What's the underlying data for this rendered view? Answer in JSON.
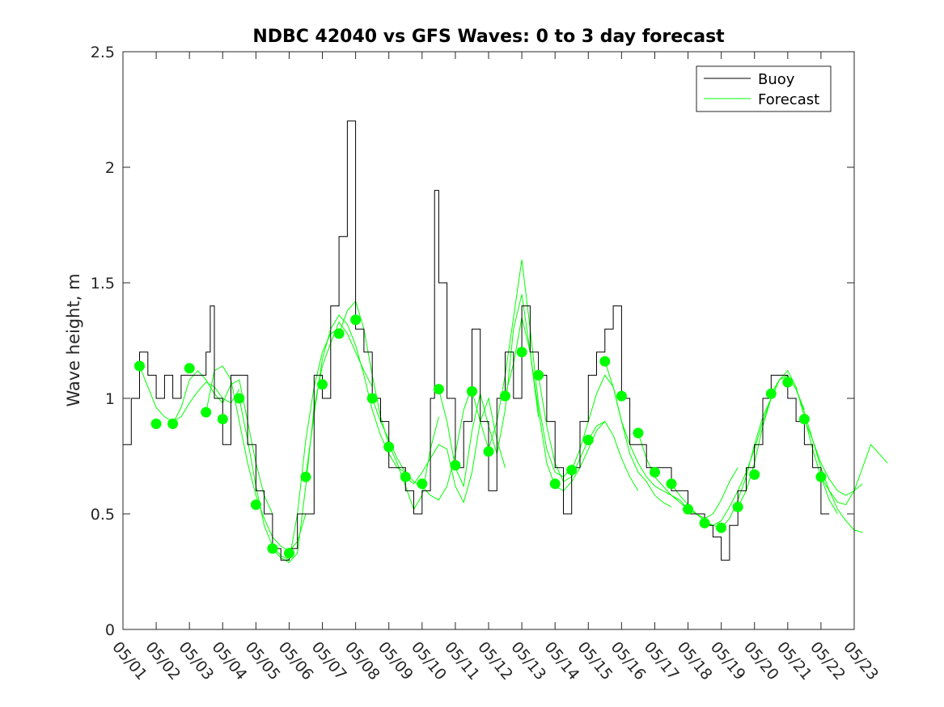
{
  "chart_data": {
    "type": "line",
    "title": "NDBC 42040 vs GFS Waves: 0 to 3 day forecast",
    "xlabel": "",
    "ylabel": "Wave height, m",
    "xlim": [
      "05/01",
      "05/23"
    ],
    "ylim": [
      0,
      2.5
    ],
    "grid": false,
    "legend_position": "top-right",
    "x_ticks": [
      "05/01",
      "05/02",
      "05/03",
      "05/04",
      "05/05",
      "05/06",
      "05/07",
      "05/08",
      "05/09",
      "05/10",
      "05/11",
      "05/12",
      "05/13",
      "05/14",
      "05/15",
      "05/16",
      "05/17",
      "05/18",
      "05/19",
      "05/20",
      "05/21",
      "05/22",
      "05/23"
    ],
    "y_ticks": [
      "0",
      "0.5",
      "1",
      "1.5",
      "2",
      "2.5"
    ],
    "y_tick_values": [
      0,
      0.5,
      1,
      1.5,
      2,
      2.5
    ],
    "legend": [
      {
        "label": "Buoy",
        "color": "#000000"
      },
      {
        "label": "Forecast",
        "color": "#00ff00"
      }
    ],
    "buoy": {
      "name": "Buoy",
      "color": "#000000",
      "points": [
        [
          "05/01 00:00",
          0.8
        ],
        [
          "05/01 06:00",
          1.0
        ],
        [
          "05/01 12:00",
          1.2
        ],
        [
          "05/01 18:00",
          1.1
        ],
        [
          "05/02 00:00",
          1.0
        ],
        [
          "05/02 06:00",
          1.1
        ],
        [
          "05/02 12:00",
          1.0
        ],
        [
          "05/02 18:00",
          1.1
        ],
        [
          "05/03 00:00",
          1.1
        ],
        [
          "05/03 06:00",
          1.1
        ],
        [
          "05/03 12:00",
          1.2
        ],
        [
          "05/03 15:00",
          1.4
        ],
        [
          "05/03 18:00",
          1.0
        ],
        [
          "05/04 00:00",
          0.8
        ],
        [
          "05/04 06:00",
          1.1
        ],
        [
          "05/04 12:00",
          1.1
        ],
        [
          "05/04 18:00",
          0.8
        ],
        [
          "05/05 00:00",
          0.6
        ],
        [
          "05/05 06:00",
          0.5
        ],
        [
          "05/05 12:00",
          0.35
        ],
        [
          "05/05 18:00",
          0.3
        ],
        [
          "05/06 00:00",
          0.35
        ],
        [
          "05/06 06:00",
          0.5
        ],
        [
          "05/06 12:00",
          0.5
        ],
        [
          "05/06 18:00",
          1.1
        ],
        [
          "05/07 00:00",
          1.0
        ],
        [
          "05/07 06:00",
          1.4
        ],
        [
          "05/07 12:00",
          1.7
        ],
        [
          "05/07 18:00",
          2.2
        ],
        [
          "05/08 00:00",
          1.3
        ],
        [
          "05/08 06:00",
          1.2
        ],
        [
          "05/08 12:00",
          1.0
        ],
        [
          "05/08 18:00",
          0.9
        ],
        [
          "05/09 00:00",
          0.7
        ],
        [
          "05/09 06:00",
          0.7
        ],
        [
          "05/09 12:00",
          0.6
        ],
        [
          "05/09 18:00",
          0.5
        ],
        [
          "05/10 00:00",
          0.6
        ],
        [
          "05/10 06:00",
          1.0
        ],
        [
          "05/10 09:00",
          1.9
        ],
        [
          "05/10 12:00",
          1.5
        ],
        [
          "05/10 18:00",
          1.0
        ],
        [
          "05/11 00:00",
          0.7
        ],
        [
          "05/11 06:00",
          0.9
        ],
        [
          "05/11 12:00",
          1.3
        ],
        [
          "05/11 18:00",
          0.9
        ],
        [
          "05/12 00:00",
          0.6
        ],
        [
          "05/12 06:00",
          1.0
        ],
        [
          "05/12 12:00",
          1.2
        ],
        [
          "05/12 18:00",
          1.0
        ],
        [
          "05/13 00:00",
          1.4
        ],
        [
          "05/13 06:00",
          1.2
        ],
        [
          "05/13 12:00",
          1.1
        ],
        [
          "05/13 18:00",
          0.9
        ],
        [
          "05/14 00:00",
          0.7
        ],
        [
          "05/14 06:00",
          0.5
        ],
        [
          "05/14 12:00",
          0.7
        ],
        [
          "05/14 18:00",
          0.9
        ],
        [
          "05/15 00:00",
          1.1
        ],
        [
          "05/15 06:00",
          1.2
        ],
        [
          "05/15 12:00",
          1.3
        ],
        [
          "05/15 18:00",
          1.4
        ],
        [
          "05/16 00:00",
          1.0
        ],
        [
          "05/16 06:00",
          0.8
        ],
        [
          "05/16 12:00",
          0.8
        ],
        [
          "05/16 18:00",
          0.7
        ],
        [
          "05/17 00:00",
          0.7
        ],
        [
          "05/17 06:00",
          0.7
        ],
        [
          "05/17 12:00",
          0.6
        ],
        [
          "05/17 18:00",
          0.6
        ],
        [
          "05/18 00:00",
          0.5
        ],
        [
          "05/18 06:00",
          0.5
        ],
        [
          "05/18 12:00",
          0.45
        ],
        [
          "05/18 18:00",
          0.4
        ],
        [
          "05/19 00:00",
          0.3
        ],
        [
          "05/19 06:00",
          0.45
        ],
        [
          "05/19 12:00",
          0.6
        ],
        [
          "05/19 18:00",
          0.7
        ],
        [
          "05/20 00:00",
          0.8
        ],
        [
          "05/20 06:00",
          1.0
        ],
        [
          "05/20 12:00",
          1.1
        ],
        [
          "05/20 18:00",
          1.1
        ],
        [
          "05/21 00:00",
          1.0
        ],
        [
          "05/21 06:00",
          0.9
        ],
        [
          "05/21 12:00",
          0.8
        ],
        [
          "05/21 18:00",
          0.7
        ],
        [
          "05/22 00:00",
          0.5
        ],
        [
          "05/22 06:00",
          0.5
        ]
      ]
    },
    "forecast": {
      "name": "Forecast",
      "color": "#00ff00",
      "marker_points": [
        [
          "05/01 12:00",
          1.14
        ],
        [
          "05/02 00:00",
          0.89
        ],
        [
          "05/02 12:00",
          0.89
        ],
        [
          "05/03 00:00",
          1.13
        ],
        [
          "05/03 12:00",
          0.94
        ],
        [
          "05/04 00:00",
          0.91
        ],
        [
          "05/04 12:00",
          1.0
        ],
        [
          "05/05 00:00",
          0.54
        ],
        [
          "05/05 12:00",
          0.35
        ],
        [
          "05/06 00:00",
          0.33
        ],
        [
          "05/06 12:00",
          0.66
        ],
        [
          "05/07 00:00",
          1.06
        ],
        [
          "05/07 12:00",
          1.28
        ],
        [
          "05/08 00:00",
          1.34
        ],
        [
          "05/08 12:00",
          1.0
        ],
        [
          "05/09 00:00",
          0.79
        ],
        [
          "05/09 12:00",
          0.66
        ],
        [
          "05/10 00:00",
          0.63
        ],
        [
          "05/10 12:00",
          1.04
        ],
        [
          "05/11 00:00",
          0.71
        ],
        [
          "05/11 12:00",
          1.03
        ],
        [
          "05/12 00:00",
          0.77
        ],
        [
          "05/12 12:00",
          1.01
        ],
        [
          "05/13 00:00",
          1.2
        ],
        [
          "05/13 12:00",
          1.1
        ],
        [
          "05/14 00:00",
          0.63
        ],
        [
          "05/14 12:00",
          0.69
        ],
        [
          "05/15 00:00",
          0.82
        ],
        [
          "05/15 12:00",
          1.16
        ],
        [
          "05/16 00:00",
          1.01
        ],
        [
          "05/16 12:00",
          0.85
        ],
        [
          "05/17 00:00",
          0.68
        ],
        [
          "05/17 12:00",
          0.63
        ],
        [
          "05/18 00:00",
          0.52
        ],
        [
          "05/18 12:00",
          0.46
        ],
        [
          "05/19 00:00",
          0.44
        ],
        [
          "05/19 12:00",
          0.53
        ],
        [
          "05/20 00:00",
          0.67
        ],
        [
          "05/20 12:00",
          1.02
        ],
        [
          "05/21 00:00",
          1.07
        ],
        [
          "05/21 12:00",
          0.91
        ],
        [
          "05/22 00:00",
          0.66
        ]
      ],
      "runs": [
        {
          "start": "05/01 12:00",
          "values": [
            1.14,
            1.05,
            0.96,
            0.92,
            0.9,
            0.92,
            0.98,
            1.03,
            1.07,
            1.05,
            1.0,
            0.98,
            1.04
          ]
        },
        {
          "start": "05/02 12:00",
          "values": [
            0.89,
            0.96,
            1.08,
            1.12,
            1.08,
            1.02,
            0.98,
            1.06,
            1.08,
            0.9,
            0.72,
            0.58,
            0.5
          ]
        },
        {
          "start": "05/03 12:00",
          "values": [
            0.94,
            1.12,
            1.14,
            1.08,
            0.9,
            0.72,
            0.58,
            0.48,
            0.4,
            0.36,
            0.34,
            0.38,
            0.5
          ]
        },
        {
          "start": "05/04 12:00",
          "values": [
            1.0,
            0.82,
            0.62,
            0.45,
            0.36,
            0.32,
            0.3,
            0.5,
            0.82,
            1.05,
            1.2,
            1.28,
            1.3
          ]
        },
        {
          "start": "05/05 12:00",
          "values": [
            0.35,
            0.31,
            0.29,
            0.33,
            0.62,
            0.96,
            1.14,
            1.24,
            1.33,
            1.28,
            1.2,
            1.12,
            1.05
          ]
        },
        {
          "start": "05/06 12:00",
          "values": [
            0.66,
            0.93,
            1.17,
            1.3,
            1.36,
            1.32,
            1.23,
            1.1,
            0.95,
            0.84,
            0.76,
            0.7,
            0.68
          ]
        },
        {
          "start": "05/07 12:00",
          "values": [
            1.28,
            1.38,
            1.42,
            1.3,
            1.1,
            0.92,
            0.8,
            0.72,
            0.62,
            0.52,
            0.58,
            0.78,
            0.92
          ]
        },
        {
          "start": "05/08 12:00",
          "values": [
            1.0,
            0.9,
            0.82,
            0.74,
            0.68,
            0.64,
            0.62,
            0.58,
            0.56,
            0.62,
            0.76,
            0.95,
            1.05
          ]
        },
        {
          "start": "05/09 12:00",
          "values": [
            0.66,
            0.63,
            0.68,
            0.74,
            0.8,
            0.78,
            0.62,
            0.55,
            0.68,
            0.9,
            1.0,
            0.82,
            0.7
          ]
        },
        {
          "start": "05/10 12:00",
          "values": [
            1.04,
            0.9,
            0.7,
            0.62,
            0.86,
            1.02,
            0.88,
            0.76,
            0.95,
            1.3,
            1.45,
            1.2,
            0.92
          ]
        },
        {
          "start": "05/11 12:00",
          "values": [
            1.03,
            0.9,
            0.78,
            0.9,
            1.1,
            1.35,
            1.6,
            1.3,
            0.98,
            0.78,
            0.68,
            0.66,
            0.7
          ]
        },
        {
          "start": "05/12 12:00",
          "values": [
            1.01,
            1.15,
            1.35,
            1.2,
            0.95,
            0.72,
            0.62,
            0.6,
            0.64,
            0.7,
            0.78,
            0.86,
            0.9
          ]
        },
        {
          "start": "05/13 12:00",
          "values": [
            1.1,
            0.88,
            0.72,
            0.64,
            0.66,
            0.74,
            0.82,
            0.88,
            0.9,
            0.84,
            0.74,
            0.66,
            0.6
          ]
        },
        {
          "start": "05/14 12:00",
          "values": [
            0.69,
            0.78,
            0.9,
            1.02,
            1.1,
            1.05,
            0.9,
            0.76,
            0.68,
            0.64,
            0.58,
            0.55,
            0.53
          ]
        },
        {
          "start": "05/15 12:00",
          "values": [
            1.16,
            1.05,
            0.9,
            0.8,
            0.72,
            0.66,
            0.62,
            0.6,
            0.58,
            0.56,
            0.52,
            0.5,
            0.48
          ]
        },
        {
          "start": "05/16 12:00",
          "values": [
            0.85,
            0.74,
            0.66,
            0.62,
            0.58,
            0.55,
            0.52,
            0.5,
            0.48,
            0.5,
            0.56,
            0.64,
            0.7
          ]
        },
        {
          "start": "05/17 12:00",
          "values": [
            0.63,
            0.58,
            0.54,
            0.5,
            0.47,
            0.45,
            0.44,
            0.48,
            0.56,
            0.66,
            0.8,
            0.92,
            1.0
          ]
        },
        {
          "start": "05/18 12:00",
          "values": [
            0.46,
            0.45,
            0.47,
            0.53,
            0.6,
            0.68,
            0.78,
            0.9,
            1.0,
            1.08,
            1.1,
            1.04,
            0.95
          ]
        },
        {
          "start": "05/19 12:00",
          "values": [
            0.53,
            0.6,
            0.72,
            0.88,
            1.0,
            1.08,
            1.12,
            1.05,
            0.92,
            0.78,
            0.66,
            0.56,
            0.5
          ]
        },
        {
          "start": "05/20 12:00",
          "values": [
            1.02,
            1.08,
            1.1,
            1.04,
            0.94,
            0.82,
            0.7,
            0.6,
            0.52,
            0.47,
            0.43,
            0.42
          ]
        },
        {
          "start": "05/21 12:00",
          "values": [
            0.91,
            0.82,
            0.72,
            0.65,
            0.6,
            0.58,
            0.6,
            0.7,
            0.8,
            0.76,
            0.72
          ]
        },
        {
          "start": "05/22 00:00",
          "values": [
            0.66,
            0.6,
            0.55,
            0.54,
            0.6,
            0.63
          ]
        }
      ]
    }
  }
}
